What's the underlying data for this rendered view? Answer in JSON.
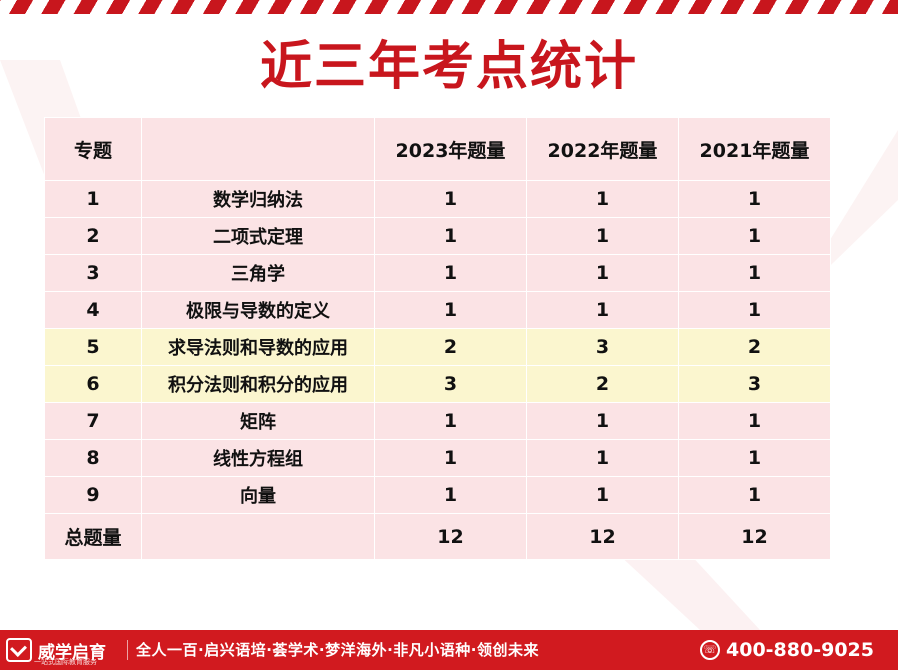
{
  "title": "近三年考点统计",
  "table": {
    "headers": [
      "专题",
      "",
      "2023年题量",
      "2022年题量",
      "2021年题量"
    ],
    "rows": [
      {
        "no": "1",
        "topic": "数学归纳法",
        "y2023": "1",
        "y2022": "1",
        "y2021": "1",
        "highlight": false
      },
      {
        "no": "2",
        "topic": "二项式定理",
        "y2023": "1",
        "y2022": "1",
        "y2021": "1",
        "highlight": false
      },
      {
        "no": "3",
        "topic": "三角学",
        "y2023": "1",
        "y2022": "1",
        "y2021": "1",
        "highlight": false
      },
      {
        "no": "4",
        "topic": "极限与导数的定义",
        "y2023": "1",
        "y2022": "1",
        "y2021": "1",
        "highlight": false
      },
      {
        "no": "5",
        "topic": "求导法则和导数的应用",
        "y2023": "2",
        "y2022": "3",
        "y2021": "2",
        "highlight": true
      },
      {
        "no": "6",
        "topic": "积分法则和积分的应用",
        "y2023": "3",
        "y2022": "2",
        "y2021": "3",
        "highlight": true
      },
      {
        "no": "7",
        "topic": "矩阵",
        "y2023": "1",
        "y2022": "1",
        "y2021": "1",
        "highlight": false
      },
      {
        "no": "8",
        "topic": "线性方程组",
        "y2023": "1",
        "y2022": "1",
        "y2021": "1",
        "highlight": false
      },
      {
        "no": "9",
        "topic": "向量",
        "y2023": "1",
        "y2022": "1",
        "y2021": "1",
        "highlight": false
      }
    ],
    "total": {
      "label": "总题量",
      "y2023": "12",
      "y2022": "12",
      "y2021": "12"
    }
  },
  "footer": {
    "logo_text": "威学启育",
    "logo_sub": "一站式国际教育服务",
    "slogan": "全人一百·启兴语培·荟学术·梦洋海外·非凡小语种·领创未来",
    "phone": "400-880-9025",
    "phone_icon": "phone-icon"
  },
  "colors": {
    "accent": "#c8161d",
    "row_pink": "#fbe3e5",
    "row_yellow": "#fbf6cf"
  }
}
